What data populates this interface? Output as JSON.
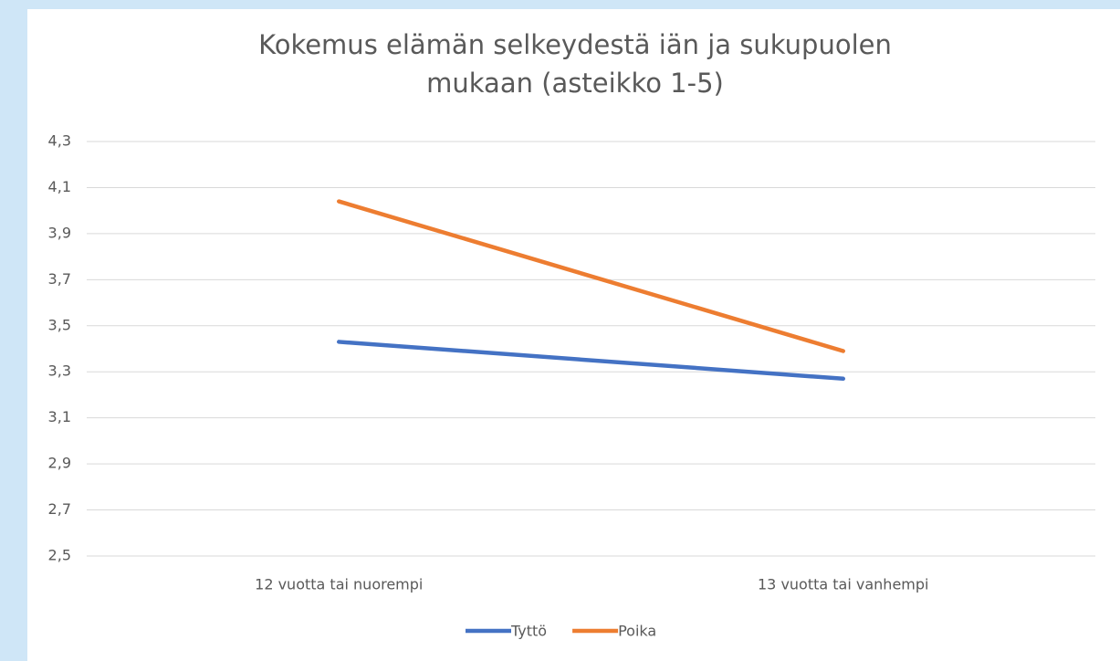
{
  "chart_data": {
    "type": "line",
    "title": "Kokemus elämän selkeydestä iän ja sukupuolen mukaan (asteikko 1-5)",
    "categories": [
      "12 vuotta tai nuorempi",
      "13 vuotta tai vanhempi"
    ],
    "series": [
      {
        "name": "Tyttö",
        "color": "#4472c4",
        "values": [
          3.43,
          3.27
        ]
      },
      {
        "name": "Poika",
        "color": "#ed7d31",
        "values": [
          4.04,
          3.39
        ]
      }
    ],
    "ylim": [
      2.5,
      4.3
    ],
    "yticks": [
      {
        "value": 2.5,
        "label": "2,5"
      },
      {
        "value": 2.7,
        "label": "2,7"
      },
      {
        "value": 2.9,
        "label": "2,9"
      },
      {
        "value": 3.1,
        "label": "3,1"
      },
      {
        "value": 3.3,
        "label": "3,3"
      },
      {
        "value": 3.5,
        "label": "3,5"
      },
      {
        "value": 3.7,
        "label": "3,7"
      },
      {
        "value": 3.9,
        "label": "3,9"
      },
      {
        "value": 4.1,
        "label": "4,1"
      },
      {
        "value": 4.3,
        "label": "4,3"
      }
    ],
    "grid": true,
    "legend": "bottom"
  }
}
